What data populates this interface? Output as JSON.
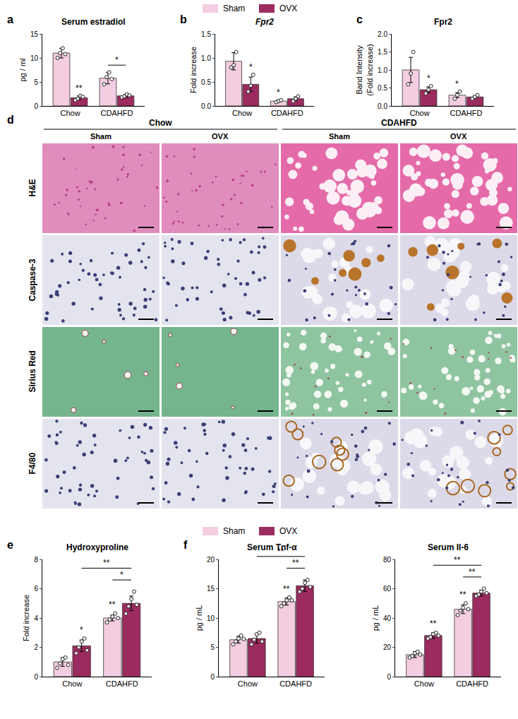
{
  "chart_data": [
    {
      "type": "bar",
      "panel": "a",
      "title": "Serum estradiol",
      "y_label": "pg / ml",
      "categories": [
        "Chow",
        "CDAHFD"
      ],
      "series": [
        {
          "name": "Sham",
          "color": "#f4cde0",
          "values": [
            11.0,
            5.8
          ],
          "errors": [
            1.0,
            1.2
          ],
          "points": [
            [
              10.0,
              11.0,
              12.0,
              10.8
            ],
            [
              4.5,
              6.0,
              7.0,
              5.6
            ]
          ]
        },
        {
          "name": "OVX",
          "color": "#9c2b5f",
          "values": [
            1.7,
            2.1
          ],
          "errors": [
            0.4,
            0.3
          ],
          "points": [
            [
              1.2,
              1.5,
              2.1,
              1.9
            ],
            [
              1.8,
              2.0,
              2.4,
              2.2
            ]
          ]
        }
      ],
      "ylim": [
        0,
        15
      ],
      "yticks": [
        0,
        5,
        10,
        15
      ],
      "significance": [
        {
          "category": "Chow",
          "series": "OVX",
          "label": "**"
        }
      ],
      "brackets": [
        {
          "from": [
            "CDAHFD",
            "Sham"
          ],
          "to": [
            "CDAHFD",
            "OVX"
          ],
          "label": "*"
        }
      ]
    },
    {
      "type": "bar",
      "panel": "b",
      "title": "Fpr2",
      "y_label": "Fold increase",
      "categories": [
        "Chow",
        "CDAHFD"
      ],
      "series": [
        {
          "name": "Sham",
          "color": "#f4cde0",
          "values": [
            0.93,
            0.1
          ],
          "errors": [
            0.18,
            0.02
          ],
          "points": [
            [
              0.8,
              0.85,
              1.12
            ],
            [
              0.08,
              0.1,
              0.12
            ]
          ]
        },
        {
          "name": "OVX",
          "color": "#9c2b5f",
          "values": [
            0.45,
            0.15
          ],
          "errors": [
            0.15,
            0.04
          ],
          "points": [
            [
              0.3,
              0.42,
              0.65
            ],
            [
              0.1,
              0.15,
              0.2
            ]
          ]
        }
      ],
      "ylim": [
        0,
        1.5
      ],
      "yticks": [
        {
          "value": 0,
          "label": "0.0"
        },
        0.5,
        {
          "value": 1,
          "label": "1.0"
        },
        1.5
      ],
      "significance": [
        {
          "category": "Chow",
          "series": "OVX",
          "label": "*"
        },
        {
          "category": "CDAHFD",
          "series": "Sham",
          "label": "*"
        }
      ],
      "brackets": []
    },
    {
      "type": "bar",
      "panel": "c",
      "title": "Fpr2",
      "y_label": "Band Intensity\n(Fold increase)",
      "categories": [
        "Chow",
        "CDAHFD"
      ],
      "series": [
        {
          "name": "Sham",
          "color": "#f4cde0",
          "values": [
            1.0,
            0.3
          ],
          "errors": [
            0.35,
            0.07
          ],
          "points": [
            [
              0.6,
              0.9,
              1.5
            ],
            [
              0.2,
              0.3,
              0.4
            ]
          ]
        },
        {
          "name": "OVX",
          "color": "#9c2b5f",
          "values": [
            0.45,
            0.25
          ],
          "errors": [
            0.08,
            0.03
          ],
          "points": [
            [
              0.35,
              0.45,
              0.55
            ],
            [
              0.2,
              0.25,
              0.3
            ]
          ]
        }
      ],
      "ylim": [
        0,
        2
      ],
      "yticks": [
        {
          "value": 0,
          "label": "0.0"
        },
        0.5,
        {
          "value": 1,
          "label": "1.0"
        },
        1.5,
        {
          "value": 2,
          "label": "2.0"
        }
      ],
      "significance": [
        {
          "category": "Chow",
          "series": "OVX",
          "label": "*"
        },
        {
          "category": "CDAHFD",
          "series": "Sham",
          "label": "*"
        }
      ],
      "brackets": []
    },
    {
      "type": "bar",
      "panel": "e",
      "title": "Hydroxyproline",
      "y_label": "Fold increase",
      "categories": [
        "Chow",
        "CDAHFD"
      ],
      "series": [
        {
          "name": "Sham",
          "color": "#f4cde0",
          "values": [
            1.0,
            4.0
          ],
          "errors": [
            0.3,
            0.2
          ],
          "points": [
            [
              0.6,
              0.9,
              1.2,
              1.3,
              0.8
            ],
            [
              3.7,
              3.9,
              4.1,
              4.3,
              4.0
            ]
          ]
        },
        {
          "name": "OVX",
          "color": "#9c2b5f",
          "values": [
            2.1,
            5.0
          ],
          "errors": [
            0.4,
            0.5
          ],
          "points": [
            [
              1.6,
              2.0,
              2.4,
              2.6,
              1.8
            ],
            [
              4.3,
              4.8,
              5.3,
              5.8,
              4.9
            ]
          ]
        }
      ],
      "ylim": [
        0,
        8
      ],
      "yticks": [
        0,
        2,
        4,
        6,
        8
      ],
      "significance": [
        {
          "category": "Chow",
          "series": "OVX",
          "label": "*"
        },
        {
          "category": "CDAHFD",
          "series": "Sham",
          "label": "**"
        }
      ],
      "brackets": [
        {
          "from": [
            "CDAHFD",
            "Sham"
          ],
          "to": [
            "CDAHFD",
            "OVX"
          ],
          "label": "*"
        },
        {
          "from": [
            "Chow",
            "OVX"
          ],
          "to": [
            "CDAHFD",
            "OVX"
          ],
          "label": "**"
        }
      ]
    },
    {
      "type": "bar",
      "panel": "f",
      "title": "Serum Tnf-α",
      "y_label": "pg / mL",
      "categories": [
        "Chow",
        "CDAHFD"
      ],
      "series": [
        {
          "name": "Sham",
          "color": "#f4cde0",
          "values": [
            6.3,
            12.8
          ],
          "errors": [
            0.6,
            0.6
          ],
          "points": [
            [
              5.5,
              6.0,
              6.5,
              7.0,
              6.4
            ],
            [
              12.0,
              12.5,
              13.0,
              13.5,
              13.0
            ]
          ]
        },
        {
          "name": "OVX",
          "color": "#9c2b5f",
          "values": [
            6.5,
            15.5
          ],
          "errors": [
            0.8,
            1.0
          ],
          "points": [
            [
              5.5,
              6.3,
              7.2,
              7.5,
              6.0
            ],
            [
              14.5,
              15.0,
              16.0,
              16.5,
              15.3
            ]
          ]
        }
      ],
      "ylim": [
        0,
        20
      ],
      "yticks": [
        0,
        5,
        10,
        15,
        20
      ],
      "significance": [
        {
          "category": "CDAHFD",
          "series": "Sham",
          "label": "**"
        }
      ],
      "brackets": [
        {
          "from": [
            "CDAHFD",
            "Sham"
          ],
          "to": [
            "CDAHFD",
            "OVX"
          ],
          "label": "**"
        },
        {
          "from": [
            "Chow",
            "OVX"
          ],
          "to": [
            "CDAHFD",
            "OVX"
          ],
          "label": "**"
        }
      ]
    },
    {
      "type": "bar",
      "title": "Serum Il-6",
      "y_label": "pg / mL",
      "categories": [
        "Chow",
        "CDAHFD"
      ],
      "series": [
        {
          "name": "Sham",
          "color": "#f4cde0",
          "values": [
            15.0,
            46.0
          ],
          "errors": [
            2.0,
            3.0
          ],
          "points": [
            [
              13.0,
              14.0,
              16.0,
              17.0,
              15.0
            ],
            [
              42.0,
              45.0,
              47.0,
              50.0,
              46.0
            ]
          ]
        },
        {
          "name": "OVX",
          "color": "#9c2b5f",
          "values": [
            28.0,
            57.0
          ],
          "errors": [
            2.0,
            2.0
          ],
          "points": [
            [
              26.0,
              27.0,
              29.0,
              30.0,
              28.0
            ],
            [
              55.0,
              56.0,
              58.0,
              60.0,
              57.0
            ]
          ]
        }
      ],
      "ylim": [
        0,
        80
      ],
      "yticks": [
        0,
        20,
        40,
        60,
        80
      ],
      "significance": [
        {
          "category": "Chow",
          "series": "OVX",
          "label": "**"
        },
        {
          "category": "CDAHFD",
          "series": "Sham",
          "label": "**"
        }
      ],
      "brackets": [
        {
          "from": [
            "CDAHFD",
            "Sham"
          ],
          "to": [
            "CDAHFD",
            "OVX"
          ],
          "label": "**"
        },
        {
          "from": [
            "Chow",
            "OVX"
          ],
          "to": [
            "CDAHFD",
            "OVX"
          ],
          "label": "**"
        }
      ]
    }
  ],
  "image_grid": {
    "panel": "d",
    "groups": [
      {
        "label": "Chow",
        "columns": [
          "Sham",
          "OVX"
        ]
      },
      {
        "label": "CDAHFD",
        "columns": [
          "Sham",
          "OVX"
        ]
      }
    ],
    "rows": [
      "H&E",
      "Caspase-3",
      "Sirius Red",
      "F4/80"
    ]
  }
}
